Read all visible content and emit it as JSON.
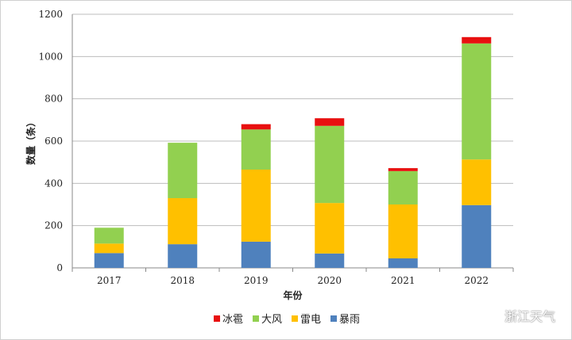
{
  "chart_data": {
    "type": "bar",
    "stacked": true,
    "xlabel": "年份",
    "ylabel": "数量（条）",
    "ylim": [
      0,
      1200
    ],
    "yticks": [
      0,
      200,
      400,
      600,
      800,
      1000,
      1200
    ],
    "grid": true,
    "legend_position": "bottom",
    "categories": [
      "2017",
      "2018",
      "2019",
      "2020",
      "2021",
      "2022"
    ],
    "series": [
      {
        "name": "暴雨",
        "color": "#4f81bd",
        "values": [
          70,
          112,
          124,
          68,
          45,
          297
        ]
      },
      {
        "name": "雷电",
        "color": "#ffc000",
        "values": [
          45,
          218,
          341,
          239,
          255,
          216
        ]
      },
      {
        "name": "大风",
        "color": "#92d050",
        "values": [
          75,
          262,
          190,
          365,
          158,
          549
        ]
      },
      {
        "name": "冰雹",
        "color": "#e81010",
        "values": [
          0,
          0,
          25,
          36,
          14,
          30
        ]
      }
    ],
    "legend_order": [
      "冰雹",
      "大风",
      "雷电",
      "暴雨"
    ]
  },
  "watermark": {
    "text": "浙江天气",
    "icon": "wechat-icon"
  }
}
